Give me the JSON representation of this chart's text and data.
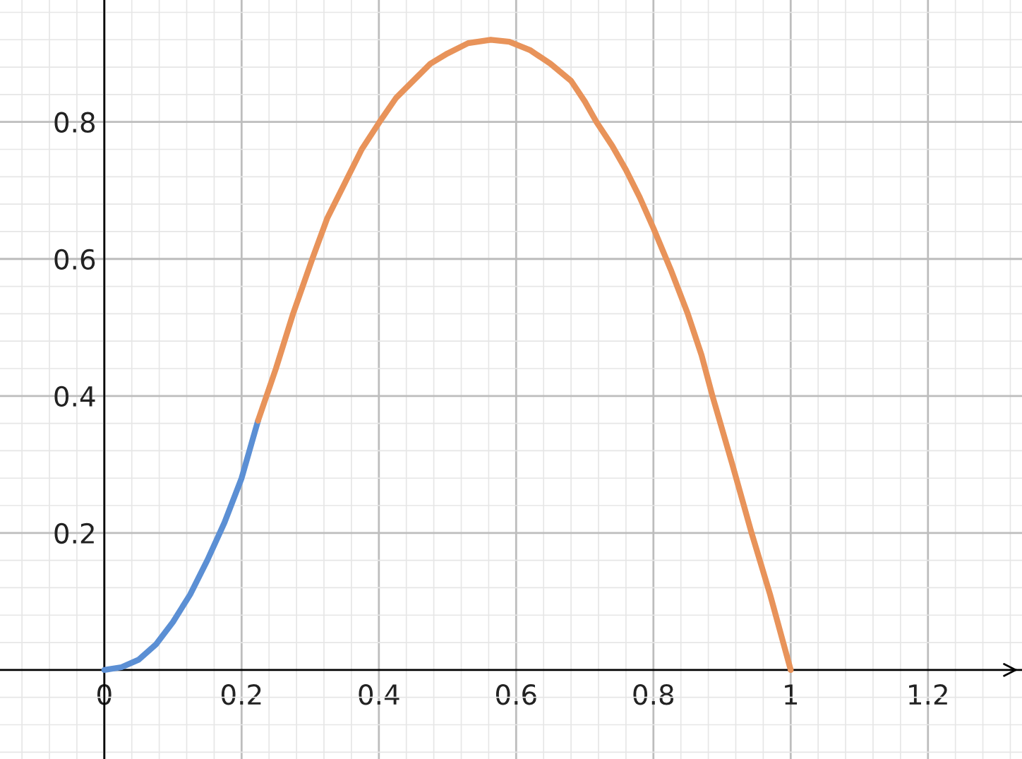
{
  "chart_data": {
    "type": "line",
    "series": [
      {
        "color": "#5b8fd4",
        "x": [
          0,
          0.025,
          0.05,
          0.075,
          0.1,
          0.125,
          0.15,
          0.175,
          0.2,
          0.224
        ],
        "values": [
          0,
          0.004,
          0.015,
          0.037,
          0.07,
          0.11,
          0.16,
          0.215,
          0.28,
          0.364
        ]
      },
      {
        "color": "#e8935a",
        "x": [
          0.224,
          0.25,
          0.275,
          0.303,
          0.325,
          0.35,
          0.375,
          0.401,
          0.425,
          0.45,
          0.475,
          0.5,
          0.53,
          0.563,
          0.59,
          0.62,
          0.65,
          0.68,
          0.7,
          0.717,
          0.74,
          0.76,
          0.78,
          0.8,
          0.825,
          0.85,
          0.87,
          0.886,
          0.915,
          0.943,
          0.97,
          1.0
        ],
        "values": [
          0.364,
          0.44,
          0.52,
          0.6,
          0.66,
          0.71,
          0.76,
          0.8,
          0.835,
          0.86,
          0.885,
          0.9,
          0.915,
          0.92,
          0.917,
          0.905,
          0.885,
          0.86,
          0.83,
          0.8,
          0.765,
          0.73,
          0.69,
          0.645,
          0.585,
          0.52,
          0.46,
          0.4,
          0.3,
          0.2,
          0.11,
          0
        ]
      }
    ],
    "xlim": [
      -0.152,
      1.337
    ],
    "ylim": [
      -0.13,
      0.978
    ],
    "xticks": [
      0,
      0.2,
      0.4,
      0.6,
      0.8,
      1,
      1.2
    ],
    "yticks": [
      0.2,
      0.4,
      0.6,
      0.8
    ],
    "grid": true,
    "legend": false,
    "marker": "none",
    "line_style": "solid"
  }
}
